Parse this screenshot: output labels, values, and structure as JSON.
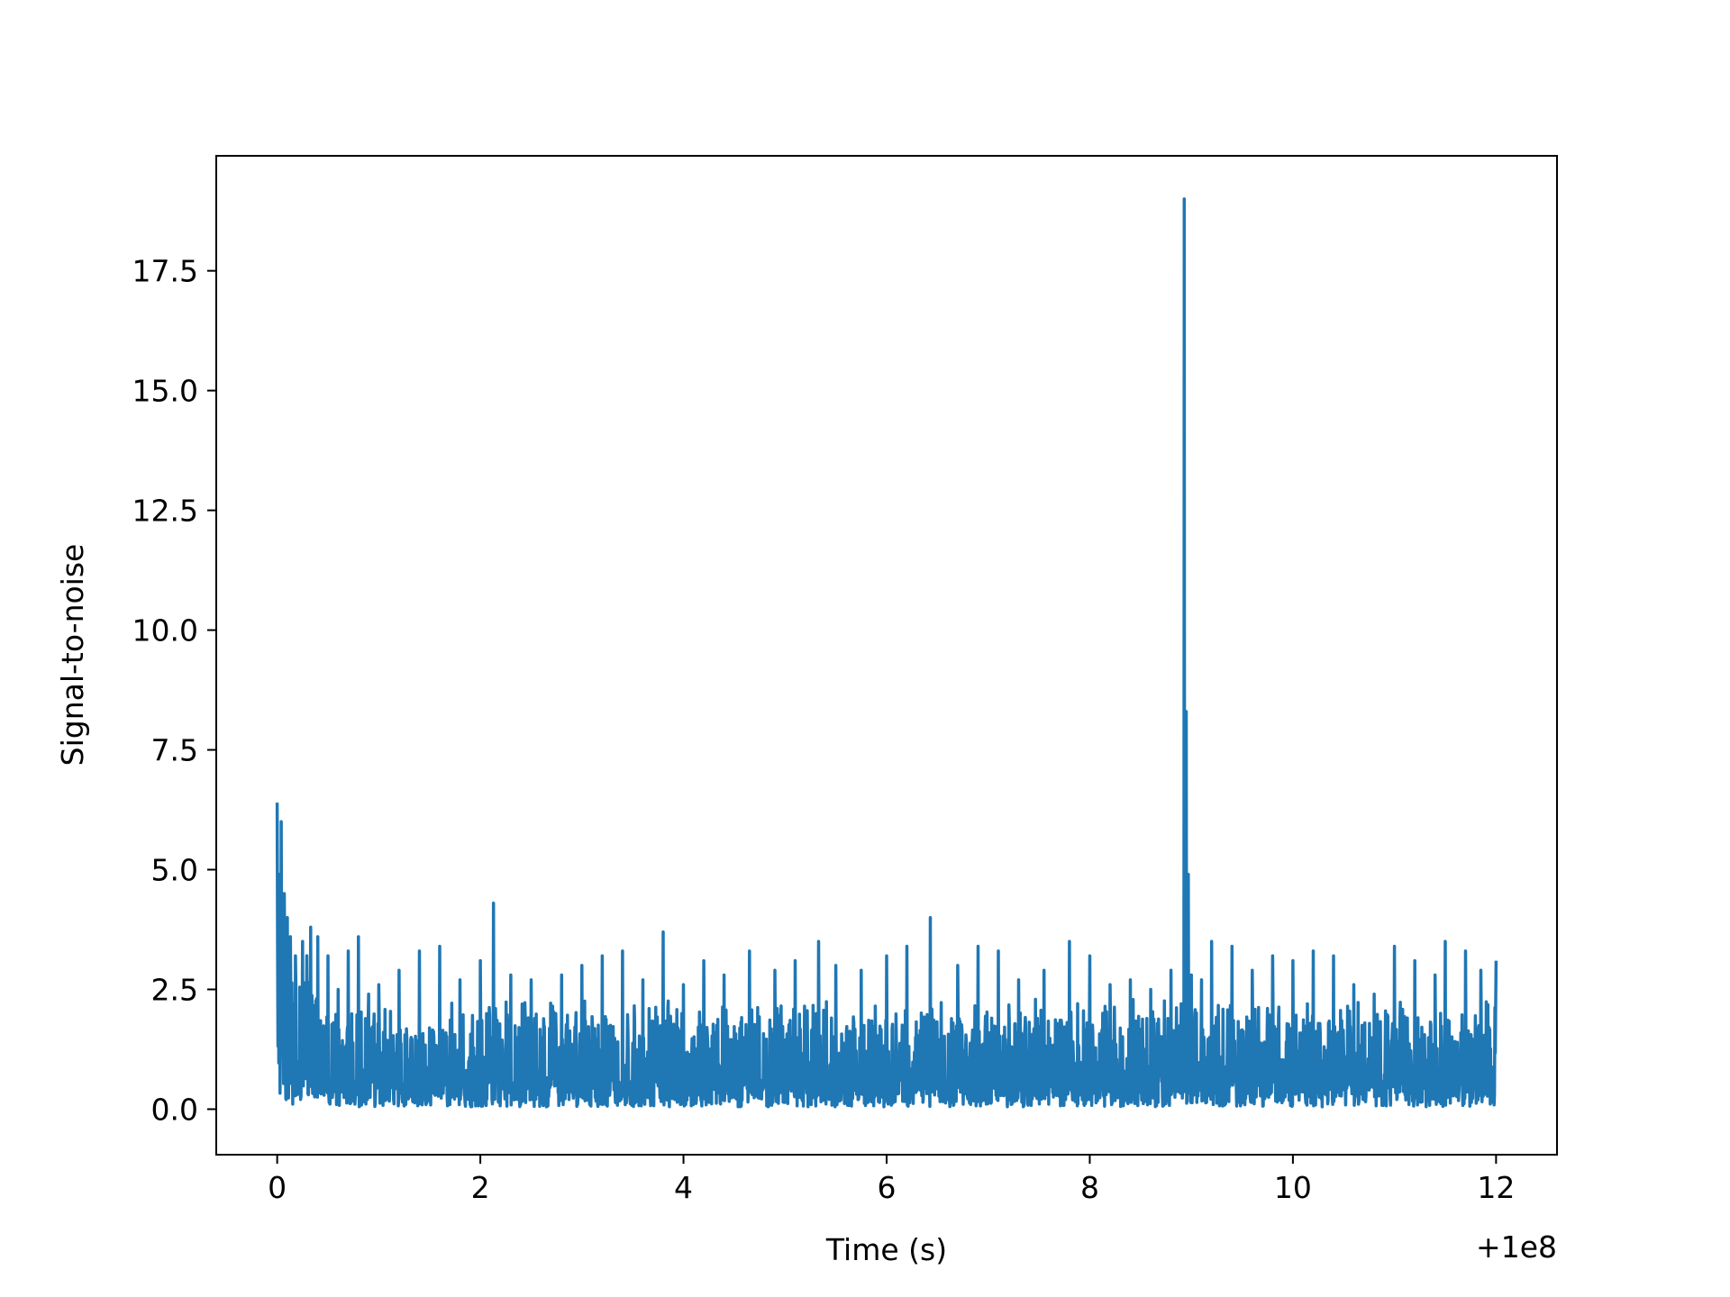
{
  "chart_data": {
    "type": "line",
    "title": "",
    "xlabel": "Time (s)",
    "ylabel": "Signal-to-noise",
    "x_offset_label": "+1e8",
    "xlim": [
      -0.6,
      12.6
    ],
    "ylim": [
      -0.95,
      19.9
    ],
    "xticks": [
      0,
      2,
      4,
      6,
      8,
      10,
      12
    ],
    "xtick_labels": [
      "0",
      "2",
      "4",
      "6",
      "8",
      "10",
      "12"
    ],
    "yticks": [
      0.0,
      2.5,
      5.0,
      7.5,
      10.0,
      12.5,
      15.0,
      17.5
    ],
    "ytick_labels": [
      "0.0",
      "2.5",
      "5.0",
      "7.5",
      "10.0",
      "12.5",
      "15.0",
      "17.5"
    ],
    "grid": false,
    "legend": false,
    "line_color": "#1f77b4",
    "series": [
      {
        "x": [
          0.0,
          0.02,
          0.04,
          0.07,
          0.1,
          0.13,
          0.18,
          0.25,
          0.33,
          0.4,
          0.5,
          0.6,
          0.7,
          0.8,
          0.9,
          1.0,
          1.2,
          1.4,
          1.6,
          1.8,
          2.0,
          2.13,
          2.3,
          2.5,
          2.8,
          3.0,
          3.2,
          3.4,
          3.6,
          3.8,
          4.0,
          4.2,
          4.4,
          4.65,
          4.9,
          5.1,
          5.33,
          5.5,
          5.75,
          6.0,
          6.2,
          6.43,
          6.7,
          6.9,
          7.1,
          7.3,
          7.55,
          7.8,
          8.0,
          8.2,
          8.4,
          8.6,
          8.8,
          8.9,
          8.93,
          8.95,
          8.97,
          9.0,
          9.1,
          9.2,
          9.4,
          9.6,
          9.8,
          10.0,
          10.2,
          10.4,
          10.6,
          10.8,
          11.0,
          11.2,
          11.4,
          11.5,
          11.7,
          11.85,
          12.0
        ],
        "y": [
          6.4,
          4.9,
          6.0,
          4.5,
          4.0,
          3.6,
          3.2,
          3.5,
          3.8,
          3.6,
          3.2,
          2.5,
          3.3,
          3.6,
          2.4,
          2.6,
          2.9,
          3.3,
          3.4,
          2.7,
          3.1,
          4.3,
          2.8,
          2.7,
          2.8,
          3.0,
          3.2,
          3.3,
          2.7,
          3.7,
          2.6,
          3.1,
          2.8,
          3.3,
          2.9,
          3.1,
          3.5,
          3.0,
          2.9,
          3.2,
          3.4,
          4.0,
          3.0,
          3.4,
          3.3,
          2.7,
          2.9,
          3.5,
          3.2,
          2.6,
          2.7,
          2.5,
          2.9,
          2.2,
          19.0,
          8.3,
          4.9,
          2.8,
          2.7,
          3.5,
          3.4,
          2.9,
          3.2,
          3.1,
          3.3,
          3.2,
          2.6,
          2.4,
          3.4,
          3.1,
          2.8,
          3.5,
          3.3,
          2.9,
          3.1
        ]
      }
    ]
  }
}
